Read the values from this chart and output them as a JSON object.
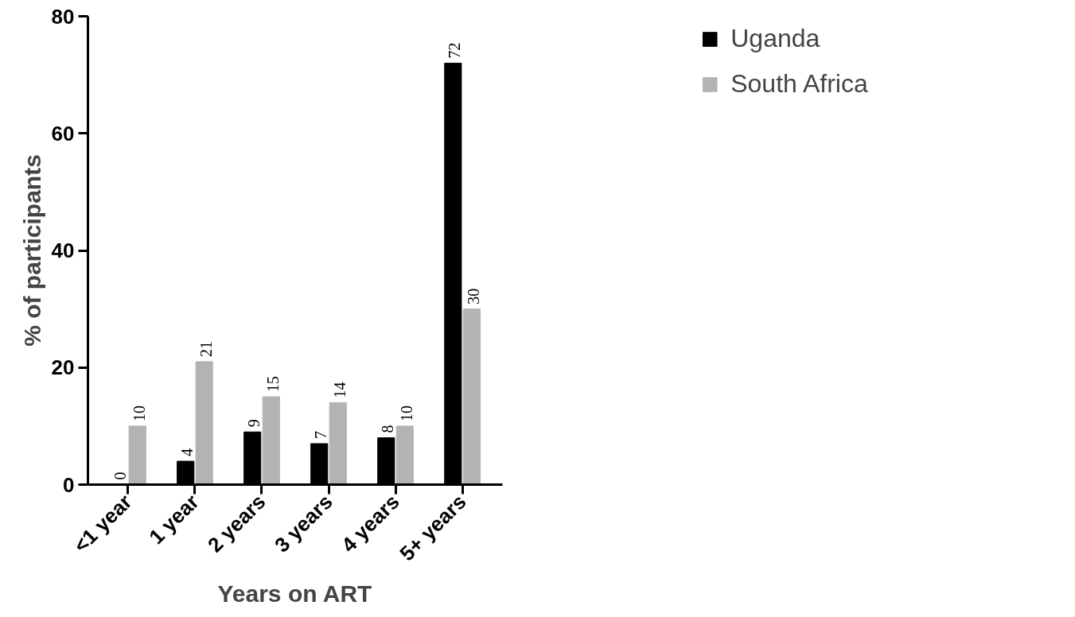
{
  "chart_data": {
    "type": "bar",
    "xlabel": "Years on ART",
    "ylabel": "% of participants",
    "categories": [
      "<1 year",
      "1 year",
      "2 years",
      "3 years",
      "4 years",
      "5+ years"
    ],
    "series": [
      {
        "name": "Uganda",
        "color": "#000000",
        "values": [
          0,
          4,
          9,
          7,
          8,
          72
        ]
      },
      {
        "name": "South Africa",
        "color": "#b3b3b3",
        "values": [
          10,
          21,
          15,
          14,
          10,
          30
        ]
      }
    ],
    "ylim": [
      0,
      80
    ],
    "yticks": [
      0,
      20,
      40,
      60,
      80
    ],
    "grid": false,
    "legend": "top right",
    "data_labels": true
  }
}
